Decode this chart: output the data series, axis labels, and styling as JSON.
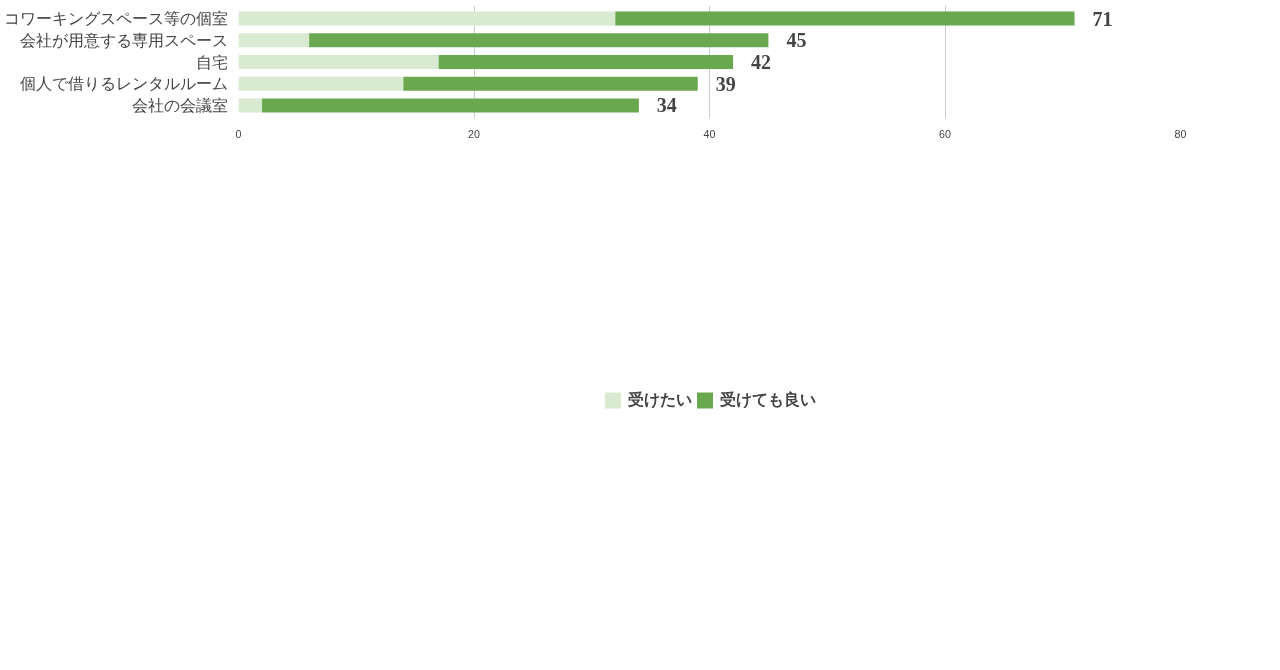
{
  "chart_data": {
    "type": "bar",
    "orientation": "horizontal",
    "stacked": true,
    "categories": [
      "コワーキングスペース等の個室",
      "会社が用意する専用スペース",
      "自宅",
      "個人で借りるレンタルルーム",
      "会社の会議室"
    ],
    "series": [
      {
        "name": "受けたい",
        "color": "#d9ead3",
        "values": [
          32,
          6,
          17,
          14,
          2
        ]
      },
      {
        "name": "受けても良い",
        "color": "#6aa84f",
        "values": [
          39,
          39,
          25,
          25,
          32
        ]
      }
    ],
    "totals": [
      "71",
      "45",
      "42",
      "39",
      "34"
    ],
    "xlim": [
      0,
      80
    ],
    "xticks": [
      0,
      20,
      40,
      60,
      80
    ],
    "grid": "x",
    "legend": "bottom"
  }
}
